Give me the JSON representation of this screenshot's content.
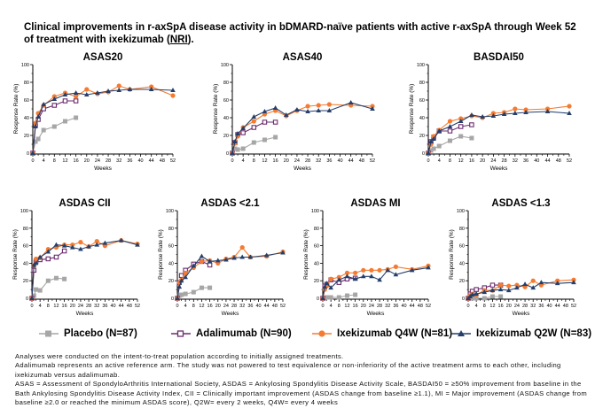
{
  "title": {
    "text": "Clinical improvements in r-axSpA disease activity in bDMARD-naïve patients with active r-axSpA through Week 52 of treatment with ixekizumab (",
    "nri": "NRI",
    "suffix": ")."
  },
  "legend": [
    {
      "name": "Placebo (N=87)",
      "color": "#a6a6a6",
      "marker": "square-filled"
    },
    {
      "name": "Adalimumab (N=90)",
      "color": "#6b2c6e",
      "marker": "square-open"
    },
    {
      "name": "Ixekizumab Q4W (N=81)",
      "color": "#f47b30",
      "marker": "circle-filled"
    },
    {
      "name": "Ixekizumab Q2W (N=83)",
      "color": "#243f6b",
      "marker": "triangle-filled"
    }
  ],
  "footnotes": [
    "Analyses were conducted on the intent-to-treat population according to initially assigned treatments.",
    "Adalimumab represents an active reference arm. The study was not powered to test equivalence or non-inferiority of the active treatment arms to each other, including ixekizumab versus adalimumab.",
    "ASAS = Assessment of SpondyloArthritis International Society, ASDAS = Ankylosing Spondylitis Disease Activity Scale, BASDAI50 = ≥50% improvement from baseline in the Bath Ankylosing Spondylitis Disease Activity Index, CII = Clinically important improvement (ASDAS change from baseline ≥1.1), MI = Major improvement (ASDAS change from baseline ≥2.0 or reached the minimum ASDAS score), Q2W= every 2 weeks, Q4W= every 4 weeks"
  ],
  "chart_data": [
    {
      "type": "line",
      "title": "ASAS20",
      "xlabel": "Weeks",
      "ylabel": "Response Rate (%)",
      "xlim": [
        0,
        52
      ],
      "ylim": [
        0,
        100
      ],
      "xticks": [
        0,
        4,
        8,
        12,
        16,
        20,
        24,
        28,
        32,
        36,
        40,
        44,
        48,
        52
      ],
      "yticks": [
        0,
        20,
        40,
        60,
        80,
        100
      ],
      "series": [
        {
          "name": "Placebo",
          "x": [
            0,
            1,
            2,
            4,
            8,
            12,
            16
          ],
          "y": [
            0,
            13,
            16,
            26,
            30,
            36,
            40
          ]
        },
        {
          "name": "Adalimumab",
          "x": [
            0,
            1,
            2,
            4,
            8,
            12,
            16
          ],
          "y": [
            0,
            32,
            38,
            50,
            54,
            59,
            59
          ]
        },
        {
          "name": "Ixekizumab Q4W",
          "x": [
            0,
            1,
            2,
            4,
            8,
            12,
            16,
            20,
            24,
            28,
            32,
            36,
            44,
            52
          ],
          "y": [
            0,
            34,
            45,
            54,
            64,
            68,
            64,
            72,
            67,
            69,
            76,
            72,
            75,
            65
          ]
        },
        {
          "name": "Ixekizumab Q2W",
          "x": [
            0,
            1,
            2,
            4,
            8,
            12,
            16,
            20,
            24,
            28,
            32,
            36,
            44,
            52
          ],
          "y": [
            0,
            30,
            41,
            55,
            61,
            66,
            68,
            66,
            68,
            70,
            71,
            72,
            72,
            71
          ]
        }
      ]
    },
    {
      "type": "line",
      "title": "ASAS40",
      "xlabel": "Weeks",
      "ylabel": "Response Rate (%)",
      "xlim": [
        0,
        52
      ],
      "ylim": [
        0,
        100
      ],
      "xticks": [
        0,
        4,
        8,
        12,
        16,
        20,
        24,
        28,
        32,
        36,
        40,
        44,
        48,
        52
      ],
      "yticks": [
        0,
        20,
        40,
        60,
        80,
        100
      ],
      "series": [
        {
          "name": "Placebo",
          "x": [
            0,
            1,
            2,
            4,
            8,
            12,
            16
          ],
          "y": [
            0,
            5,
            4,
            5,
            12,
            15,
            18
          ]
        },
        {
          "name": "Adalimumab",
          "x": [
            0,
            1,
            2,
            4,
            8,
            12,
            16
          ],
          "y": [
            0,
            12,
            21,
            23,
            29,
            35,
            35
          ]
        },
        {
          "name": "Ixekizumab Q4W",
          "x": [
            0,
            1,
            2,
            4,
            8,
            12,
            16,
            20,
            24,
            28,
            32,
            36,
            44,
            52
          ],
          "y": [
            0,
            11,
            19,
            29,
            36,
            44,
            48,
            42,
            48,
            53,
            54,
            55,
            54,
            53
          ]
        },
        {
          "name": "Ixekizumab Q2W",
          "x": [
            0,
            1,
            2,
            4,
            8,
            12,
            16,
            20,
            24,
            28,
            32,
            36,
            44,
            52
          ],
          "y": [
            0,
            13,
            22,
            28,
            41,
            47,
            51,
            43,
            49,
            47,
            48,
            48,
            57,
            50
          ]
        }
      ]
    },
    {
      "type": "line",
      "title": "BASDAI50",
      "xlabel": "Weeks",
      "ylabel": "Response Rate (%)",
      "xlim": [
        0,
        52
      ],
      "ylim": [
        0,
        100
      ],
      "xticks": [
        0,
        4,
        8,
        12,
        16,
        20,
        24,
        28,
        32,
        36,
        40,
        44,
        48,
        52
      ],
      "yticks": [
        0,
        20,
        40,
        60,
        80,
        100
      ],
      "series": [
        {
          "name": "Placebo",
          "x": [
            0,
            1,
            2,
            4,
            8,
            12,
            16
          ],
          "y": [
            0,
            3,
            5,
            8,
            14,
            19,
            17
          ]
        },
        {
          "name": "Adalimumab",
          "x": [
            0,
            1,
            2,
            4,
            8,
            12,
            16
          ],
          "y": [
            0,
            13,
            18,
            25,
            25,
            30,
            32
          ]
        },
        {
          "name": "Ixekizumab Q4W",
          "x": [
            0,
            1,
            2,
            4,
            8,
            12,
            16,
            20,
            24,
            28,
            32,
            36,
            44,
            52
          ],
          "y": [
            0,
            10,
            19,
            26,
            36,
            39,
            42,
            40,
            45,
            46,
            50,
            49,
            50,
            53
          ]
        },
        {
          "name": "Ixekizumab Q2W",
          "x": [
            0,
            1,
            2,
            4,
            8,
            12,
            16,
            20,
            24,
            28,
            32,
            36,
            44,
            52
          ],
          "y": [
            0,
            13,
            16,
            25,
            30,
            36,
            43,
            41,
            42,
            44,
            45,
            46,
            47,
            45
          ]
        }
      ]
    },
    {
      "type": "line",
      "title": "ASDAS CII",
      "xlabel": "Weeks",
      "ylabel": "Response Rate (%)",
      "xlim": [
        0,
        52
      ],
      "ylim": [
        0,
        100
      ],
      "xticks": [
        0,
        4,
        8,
        12,
        16,
        20,
        24,
        28,
        32,
        36,
        40,
        44,
        48,
        52
      ],
      "yticks": [
        0,
        20,
        40,
        60,
        80,
        100
      ],
      "series": [
        {
          "name": "Placebo",
          "x": [
            0,
            1,
            2,
            4,
            8,
            12,
            16
          ],
          "y": [
            0,
            3,
            10,
            9,
            20,
            23,
            22
          ]
        },
        {
          "name": "Adalimumab",
          "x": [
            0,
            1,
            2,
            4,
            8,
            12,
            16
          ],
          "y": [
            0,
            32,
            42,
            44,
            45,
            47,
            54
          ]
        },
        {
          "name": "Ixekizumab Q4W",
          "x": [
            0,
            1,
            2,
            4,
            8,
            12,
            16,
            20,
            24,
            28,
            32,
            36,
            44,
            52
          ],
          "y": [
            0,
            37,
            45,
            46,
            56,
            58,
            61,
            61,
            64,
            59,
            65,
            60,
            66,
            62
          ]
        },
        {
          "name": "Ixekizumab Q2W",
          "x": [
            0,
            1,
            2,
            4,
            8,
            12,
            16,
            20,
            24,
            28,
            32,
            36,
            44,
            52
          ],
          "y": [
            0,
            38,
            40,
            47,
            53,
            61,
            60,
            58,
            56,
            59,
            61,
            63,
            66,
            61
          ]
        }
      ]
    },
    {
      "type": "line",
      "title": "ASDAS <2.1",
      "xlabel": "Weeks",
      "ylabel": "Response Rate (%)",
      "xlim": [
        0,
        52
      ],
      "ylim": [
        0,
        100
      ],
      "xticks": [
        0,
        4,
        8,
        12,
        16,
        20,
        24,
        28,
        32,
        36,
        40,
        44,
        48,
        52
      ],
      "yticks": [
        0,
        20,
        40,
        60,
        80,
        100
      ],
      "series": [
        {
          "name": "Placebo",
          "x": [
            0,
            1,
            2,
            4,
            8,
            12,
            16
          ],
          "y": [
            0,
            3,
            4,
            5,
            7,
            12,
            12
          ]
        },
        {
          "name": "Adalimumab",
          "x": [
            0,
            1,
            2,
            4,
            8,
            12,
            16
          ],
          "y": [
            0,
            18,
            26,
            32,
            39,
            42,
            38
          ]
        },
        {
          "name": "Ixekizumab Q4W",
          "x": [
            0,
            1,
            2,
            4,
            8,
            12,
            16,
            20,
            24,
            28,
            32,
            36,
            44,
            52
          ],
          "y": [
            0,
            18,
            21,
            29,
            35,
            42,
            43,
            40,
            45,
            47,
            58,
            47,
            48,
            53
          ]
        },
        {
          "name": "Ixekizumab Q2W",
          "x": [
            0,
            1,
            2,
            4,
            8,
            12,
            16,
            20,
            24,
            28,
            32,
            36,
            44,
            52
          ],
          "y": [
            0,
            13,
            20,
            24,
            37,
            48,
            42,
            43,
            44,
            46,
            47,
            47,
            49,
            52
          ]
        }
      ]
    },
    {
      "type": "line",
      "title": "ASDAS MI",
      "xlabel": "Weeks",
      "ylabel": "Response Rate (%)",
      "xlim": [
        0,
        52
      ],
      "ylim": [
        0,
        100
      ],
      "xticks": [
        0,
        4,
        8,
        12,
        16,
        20,
        24,
        28,
        32,
        36,
        40,
        44,
        48,
        52
      ],
      "yticks": [
        0,
        20,
        40,
        60,
        80,
        100
      ],
      "series": [
        {
          "name": "Placebo",
          "x": [
            0,
            1,
            2,
            4,
            8,
            12,
            16
          ],
          "y": [
            0,
            0,
            1,
            1,
            1,
            3,
            4
          ]
        },
        {
          "name": "Adalimumab",
          "x": [
            0,
            1,
            2,
            4,
            8,
            12,
            16
          ],
          "y": [
            0,
            14,
            16,
            21,
            18,
            22,
            23
          ]
        },
        {
          "name": "Ixekizumab Q4W",
          "x": [
            0,
            1,
            2,
            4,
            8,
            12,
            16,
            20,
            24,
            28,
            32,
            36,
            44,
            52
          ],
          "y": [
            0,
            10,
            14,
            22,
            24,
            29,
            29,
            32,
            32,
            32,
            33,
            36,
            33,
            37
          ]
        },
        {
          "name": "Ixekizumab Q2W",
          "x": [
            0,
            1,
            2,
            4,
            8,
            12,
            16,
            20,
            24,
            28,
            32,
            36,
            44,
            52
          ],
          "y": [
            0,
            13,
            17,
            12,
            21,
            25,
            22,
            25,
            25,
            21,
            32,
            27,
            32,
            35
          ]
        }
      ]
    },
    {
      "type": "line",
      "title": "ASDAS <1.3",
      "xlabel": "Weeks",
      "ylabel": "Response Rate (%)",
      "xlim": [
        0,
        52
      ],
      "ylim": [
        0,
        100
      ],
      "xticks": [
        0,
        4,
        8,
        12,
        16,
        20,
        24,
        28,
        32,
        36,
        40,
        44,
        48,
        52
      ],
      "yticks": [
        0,
        20,
        40,
        60,
        80,
        100
      ],
      "series": [
        {
          "name": "Placebo",
          "x": [
            0,
            1,
            2,
            4,
            8,
            12,
            16
          ],
          "y": [
            0,
            0,
            0,
            0,
            0,
            2,
            2
          ]
        },
        {
          "name": "Adalimumab",
          "x": [
            0,
            1,
            2,
            4,
            8,
            12,
            16
          ],
          "y": [
            0,
            5,
            8,
            10,
            12,
            15,
            15
          ]
        },
        {
          "name": "Ixekizumab Q4W",
          "x": [
            0,
            1,
            2,
            4,
            8,
            12,
            16,
            20,
            24,
            28,
            32,
            36,
            44,
            52
          ],
          "y": [
            0,
            3,
            5,
            4,
            9,
            9,
            15,
            14,
            15,
            13,
            20,
            15,
            20,
            21
          ]
        },
        {
          "name": "Ixekizumab Q2W",
          "x": [
            0,
            1,
            2,
            4,
            8,
            12,
            16,
            20,
            24,
            28,
            32,
            36,
            44,
            52
          ],
          "y": [
            0,
            2,
            4,
            5,
            7,
            9,
            10,
            9,
            12,
            16,
            12,
            18,
            17,
            18
          ]
        }
      ]
    }
  ]
}
